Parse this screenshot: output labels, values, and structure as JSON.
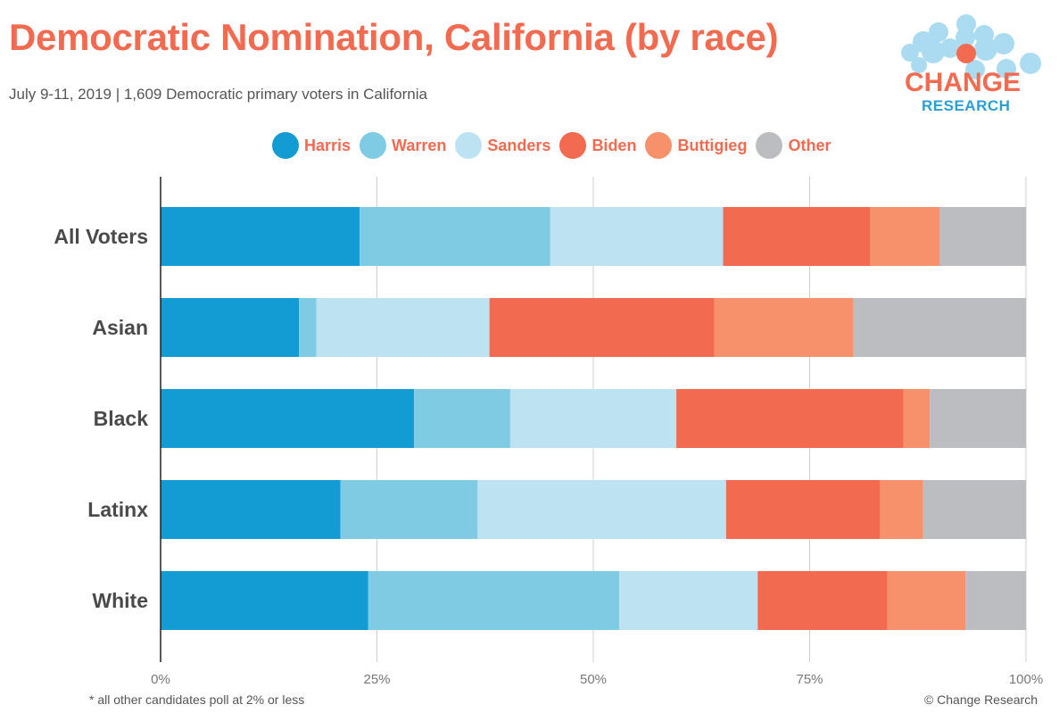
{
  "title": "Democratic Nomination, California (by race)",
  "subtitle": "July 9-11, 2019  | 1,609 Democratic primary voters in California",
  "footnote": "* all other candidates poll at 2% or less",
  "copyright": "© Change Research",
  "logo": {
    "line1": "CHANGE",
    "line2": "RESEARCH",
    "tm": "™"
  },
  "colors": {
    "Harris": "#139bd4",
    "Warren": "#80cbe4",
    "Sanders": "#bde3f2",
    "Biden": "#f26b50",
    "Buttigieg": "#f6916b",
    "Other": "#bcbdc1",
    "brand_orange": "#f26b50",
    "brand_blue": "#2a9ed6"
  },
  "chart_data": {
    "type": "bar",
    "orientation": "horizontal",
    "stacked": true,
    "categories": [
      "All Voters",
      "Asian",
      "Black",
      "Latinx",
      "White"
    ],
    "series": [
      {
        "name": "Harris",
        "values": [
          23,
          16,
          29,
          21,
          24
        ]
      },
      {
        "name": "Warren",
        "values": [
          22,
          2,
          11,
          16,
          29
        ]
      },
      {
        "name": "Sanders",
        "values": [
          20,
          20,
          19,
          29,
          16
        ]
      },
      {
        "name": "Biden",
        "values": [
          17,
          26,
          26,
          18,
          15
        ]
      },
      {
        "name": "Buttigieg",
        "values": [
          8,
          16,
          3,
          5,
          9
        ]
      },
      {
        "name": "Other",
        "values": [
          10,
          20,
          11,
          12,
          7
        ]
      }
    ],
    "xticks": [
      "0%",
      "25%",
      "50%",
      "75%",
      "100%"
    ],
    "xlim": [
      0,
      100
    ],
    "grid": true,
    "legend_position": "top"
  }
}
